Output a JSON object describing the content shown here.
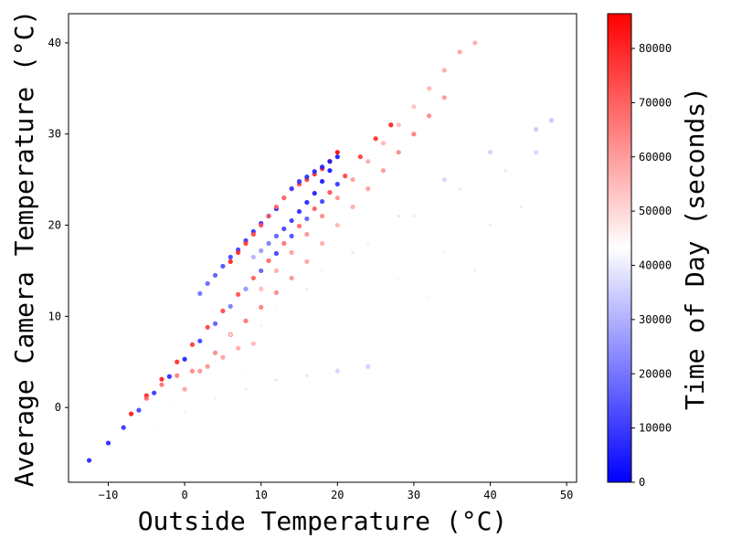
{
  "chart_data": {
    "type": "scatter",
    "title": "",
    "xlabel": "Outside Temperature (°C)",
    "ylabel": "Average Camera Temperature (°C)",
    "xlim": [
      -15.2,
      51.3
    ],
    "ylim": [
      -8.2,
      43.2
    ],
    "xticks": [
      -10,
      0,
      10,
      20,
      30,
      40,
      50
    ],
    "yticks": [
      0,
      10,
      20,
      30,
      40
    ],
    "grid": false,
    "colormap": {
      "name": "bwr",
      "low": "#0000ff",
      "mid": "#ffffff",
      "high": "#ff0000"
    },
    "colorbar": {
      "label": "Time of Day (seconds)",
      "range": [
        0,
        86400
      ],
      "ticks": [
        0,
        10000,
        20000,
        30000,
        40000,
        50000,
        60000,
        70000,
        80000
      ]
    },
    "series": [
      {
        "x": [
          -12.5,
          -10,
          -8,
          -6,
          -4,
          -2,
          0,
          2,
          4,
          6,
          8,
          10,
          12,
          14,
          16,
          18,
          20
        ],
        "y": [
          -5.8,
          -3.9,
          -2.2,
          -0.3,
          1.6,
          3.4,
          5.3,
          7.3,
          9.2,
          11.1,
          13.0,
          15.0,
          16.9,
          18.8,
          20.7,
          22.6,
          24.5
        ],
        "t": [
          5000,
          5000,
          8000,
          10000,
          8000,
          6000,
          5000,
          10000,
          15000,
          20000,
          25000,
          15000,
          10000,
          12000,
          15000,
          10000,
          8000
        ]
      },
      {
        "x": [
          -7,
          -5,
          -3,
          -1,
          1,
          3,
          5,
          7,
          9,
          11,
          13,
          15,
          17,
          19,
          21,
          23,
          25,
          27
        ],
        "y": [
          -0.7,
          1.3,
          3.1,
          5.0,
          6.9,
          8.8,
          10.6,
          12.4,
          14.2,
          16.1,
          18.0,
          19.9,
          21.8,
          23.6,
          25.4,
          27.5,
          29.5,
          31.0
        ],
        "t": [
          84000,
          83000,
          82000,
          80000,
          78000,
          76000,
          75000,
          74000,
          72000,
          70000,
          68000,
          70000,
          72000,
          74000,
          76000,
          78000,
          80000,
          82000
        ]
      },
      {
        "x": [
          2,
          3,
          4,
          5,
          6,
          7,
          8,
          9,
          10,
          11,
          12
        ],
        "y": [
          12.5,
          13.6,
          14.5,
          15.5,
          16.5,
          17.3,
          18.3,
          19.3,
          20.2,
          21.0,
          21.8
        ],
        "t": [
          18000,
          16000,
          14000,
          12000,
          10000,
          9000,
          8000,
          7000,
          6000,
          5000,
          4000
        ]
      },
      {
        "x": [
          6,
          7,
          8,
          9,
          10,
          11,
          12,
          13,
          14,
          15,
          16,
          17,
          18,
          19,
          20
        ],
        "y": [
          16.0,
          17.0,
          18.0,
          19.0,
          20.0,
          21.0,
          22.0,
          23.0,
          24.0,
          24.5,
          25.0,
          25.6,
          26.2,
          27.0,
          28.0
        ],
        "t": [
          82000,
          80000,
          78000,
          76000,
          74000,
          72000,
          70000,
          72000,
          74000,
          76000,
          78000,
          80000,
          82000,
          84000,
          86000
        ]
      },
      {
        "x": [
          9,
          10,
          11,
          12,
          13,
          14,
          15,
          16,
          17,
          18,
          19
        ],
        "y": [
          16.5,
          17.2,
          18.0,
          18.8,
          19.6,
          20.5,
          21.5,
          22.5,
          23.5,
          24.8,
          26.0
        ],
        "t": [
          30000,
          25000,
          20000,
          15000,
          10000,
          8000,
          6000,
          5000,
          4000,
          3000,
          2000
        ]
      },
      {
        "x": [
          14,
          15,
          16,
          17,
          18,
          19,
          20
        ],
        "y": [
          24.0,
          24.8,
          25.3,
          25.9,
          26.4,
          27.0,
          27.5
        ],
        "t": [
          10000,
          8000,
          7000,
          6000,
          5000,
          4000,
          3000
        ]
      },
      {
        "x": [
          10,
          12,
          14,
          16,
          18,
          20,
          22,
          24,
          26,
          28,
          30,
          32,
          34,
          36,
          38
        ],
        "y": [
          13.0,
          15.0,
          17.0,
          19.0,
          21.0,
          23.0,
          25.0,
          27.0,
          29.0,
          31.0,
          33.0,
          35.0,
          37.0,
          39.0,
          40.0
        ],
        "t": [
          55000,
          58000,
          60000,
          62000,
          64000,
          62000,
          60000,
          58000,
          56000,
          55000,
          54000,
          56000,
          58000,
          60000,
          58000
        ]
      },
      {
        "x": [
          0,
          2,
          4,
          6,
          8,
          10,
          12,
          14,
          16,
          18,
          20,
          22,
          24,
          26,
          28,
          30,
          32,
          34
        ],
        "y": [
          2.0,
          4.0,
          6.0,
          8.0,
          9.5,
          11.0,
          12.6,
          14.2,
          16.0,
          18.0,
          20.0,
          22.0,
          24.0,
          26.0,
          28.0,
          30.0,
          32.0,
          34.0
        ],
        "t": [
          60000,
          62000,
          64000,
          66000,
          68000,
          66000,
          64000,
          62000,
          60000,
          58000,
          56000,
          58000,
          60000,
          62000,
          64000,
          66000,
          64000,
          62000
        ]
      },
      {
        "x": [
          -5,
          -3,
          -1,
          1,
          3,
          5,
          7,
          9
        ],
        "y": [
          1.0,
          2.5,
          3.5,
          4.0,
          4.5,
          5.5,
          6.5,
          7.0
        ],
        "t": [
          70000,
          68000,
          66000,
          64000,
          62000,
          60000,
          58000,
          56000
        ]
      },
      {
        "x": [
          -12,
          -8,
          -4,
          0,
          4,
          8,
          12,
          16,
          20,
          24
        ],
        "y": [
          -6.0,
          -4.0,
          -2.0,
          -0.5,
          1.0,
          2.0,
          3.0,
          3.5,
          4.0,
          4.5
        ],
        "t": [
          44000,
          43000,
          42000,
          41000,
          40000,
          39000,
          38000,
          37000,
          36000,
          35000
        ]
      },
      {
        "x": [
          -2,
          4,
          10,
          16,
          22,
          28,
          34,
          40,
          46,
          48
        ],
        "y": [
          0.5,
          5.0,
          9.0,
          13.0,
          17.0,
          21.0,
          25.0,
          28.0,
          30.5,
          31.5
        ],
        "t": [
          42000,
          41000,
          40000,
          39000,
          38000,
          37000,
          36000,
          35000,
          34000,
          33000
        ]
      },
      {
        "x": [
          6,
          12,
          18,
          24,
          30,
          36,
          42,
          46
        ],
        "y": [
          8.0,
          11.0,
          15.0,
          18.0,
          21.0,
          24.0,
          26.0,
          28.0
        ],
        "t": [
          43000,
          42000,
          41000,
          40000,
          39000,
          38000,
          37000,
          36000
        ]
      },
      {
        "x": [
          10,
          16,
          22,
          28,
          34,
          40,
          44
        ],
        "y": [
          6.0,
          9.0,
          12.0,
          14.0,
          17.0,
          20.0,
          22.0
        ],
        "t": [
          44000,
          43000,
          42000,
          41000,
          40000,
          39000,
          38000
        ]
      },
      {
        "x": [
          8,
          14,
          20,
          26,
          32,
          38
        ],
        "y": [
          4.0,
          6.0,
          8.0,
          10.0,
          12.0,
          15.0
        ],
        "t": [
          45000,
          44000,
          43000,
          42000,
          41000,
          40000
        ]
      }
    ]
  }
}
